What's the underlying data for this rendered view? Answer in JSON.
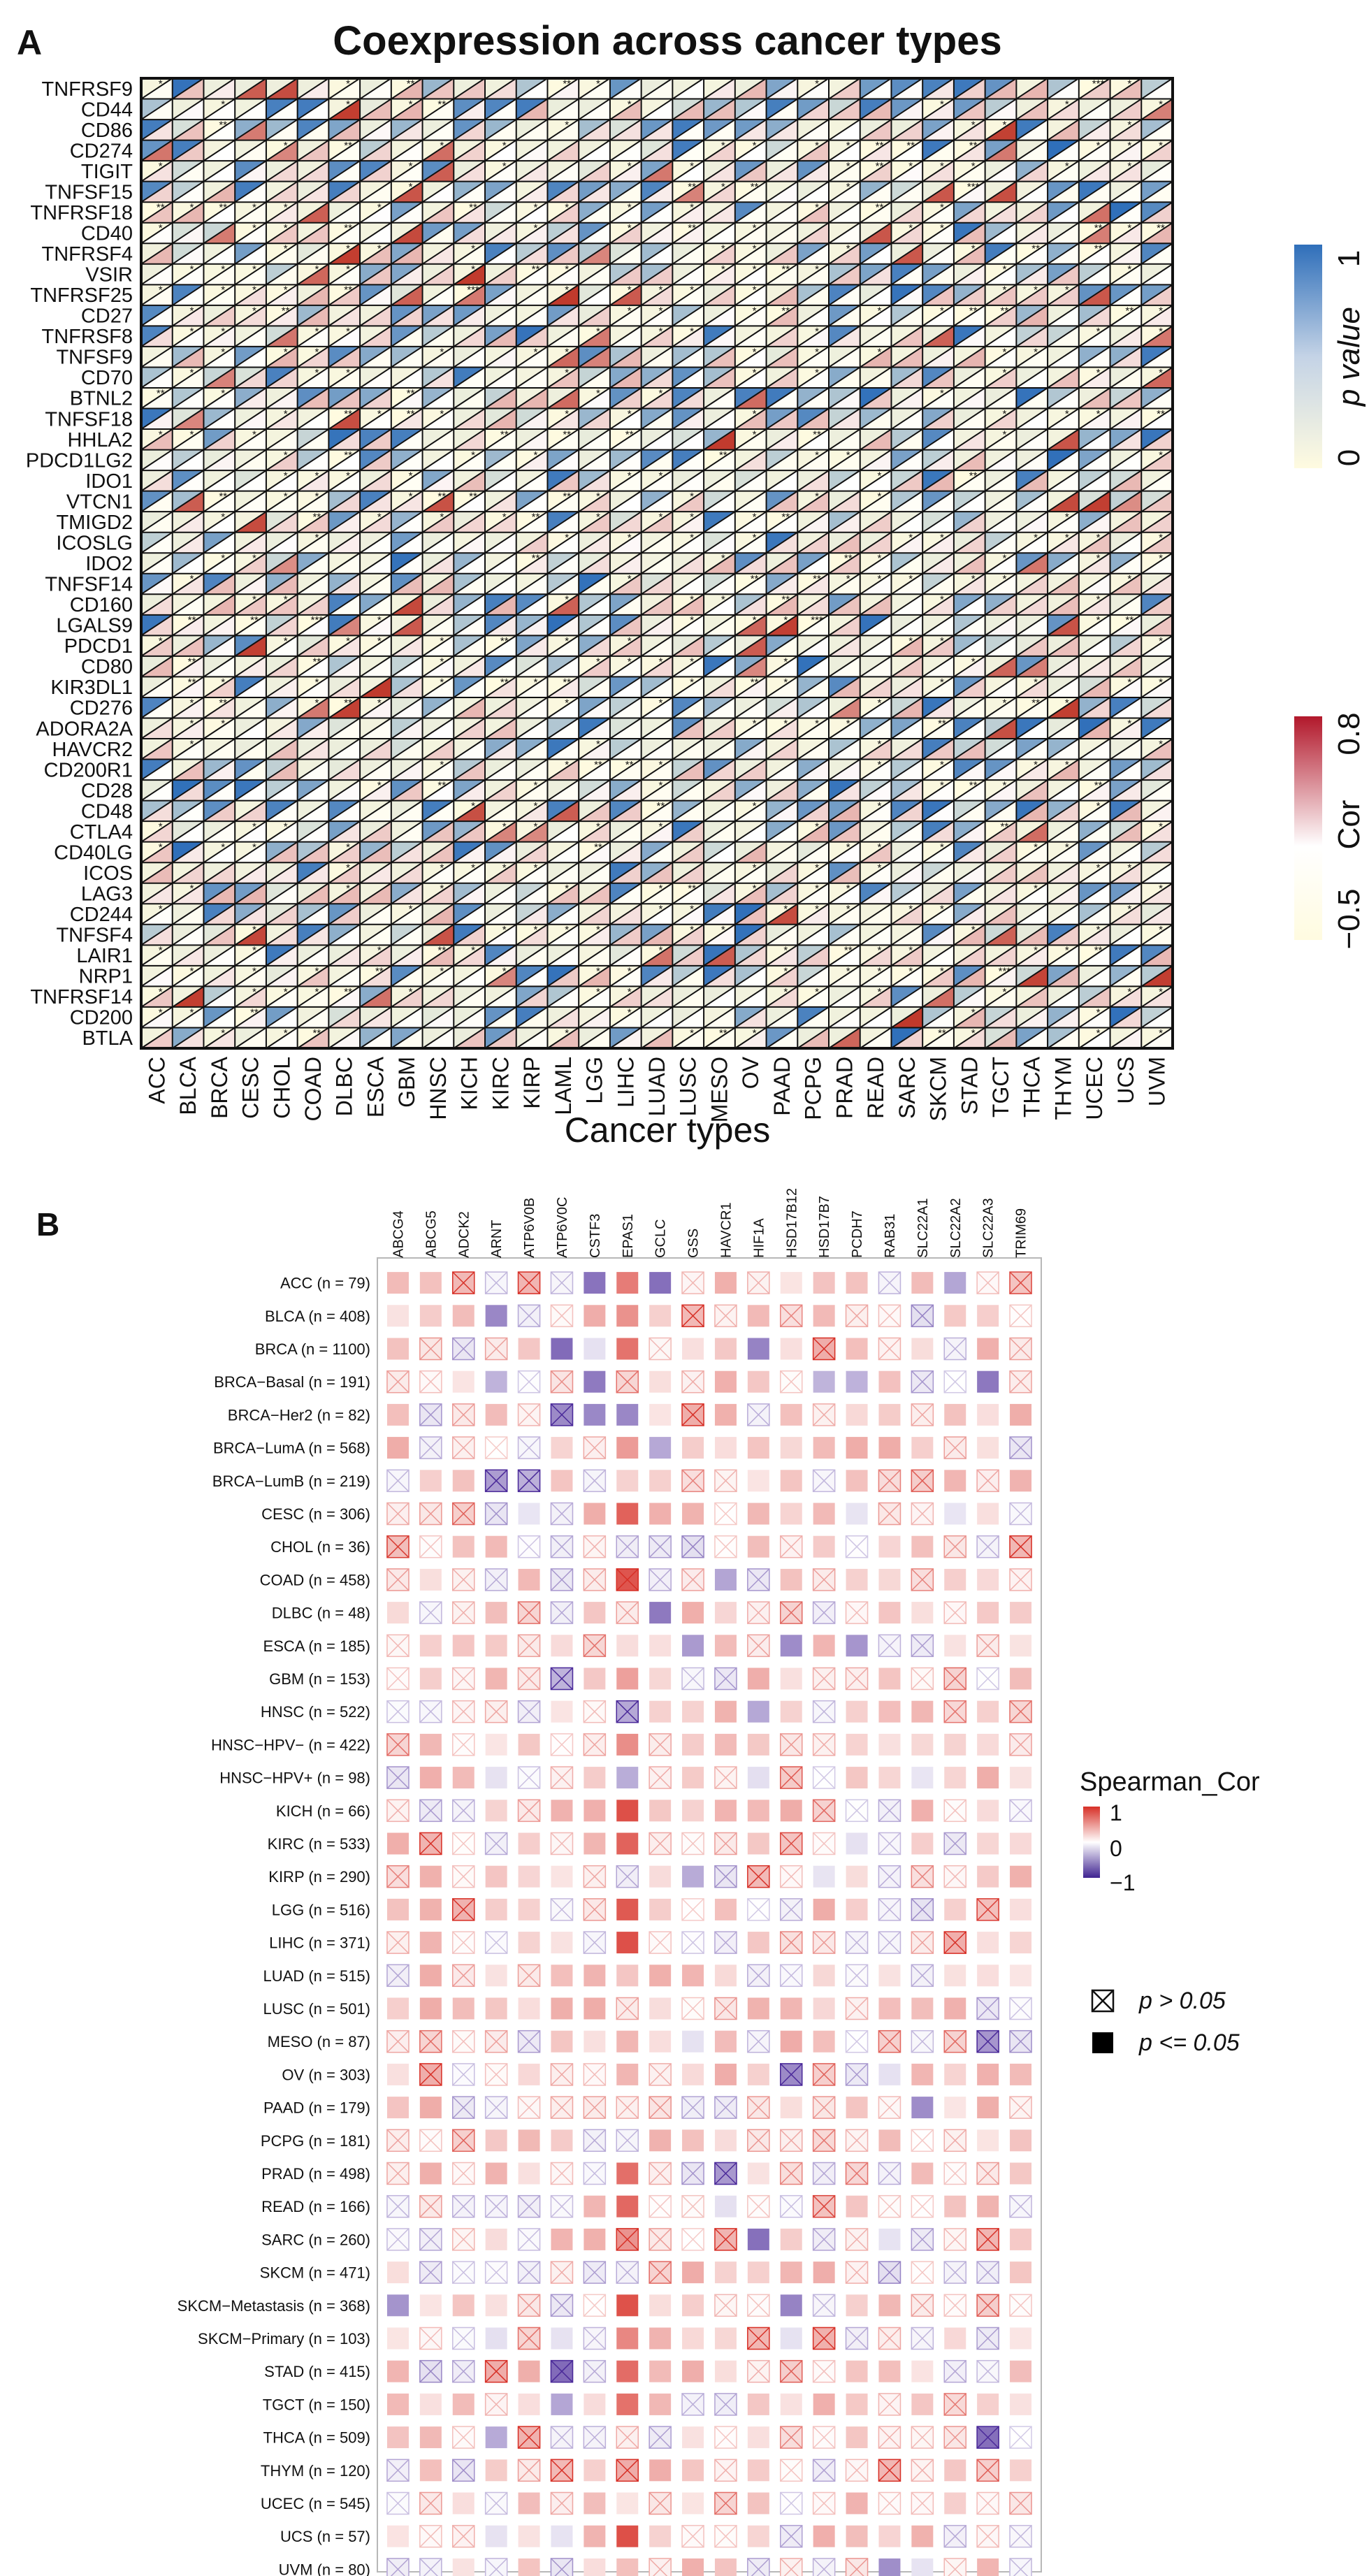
{
  "panels": {
    "a_label": "A",
    "b_label": "B"
  },
  "colors": {
    "heat_high": "#c0392b",
    "heat_mid": "#ffffff",
    "heat_low": "#fffbe0",
    "pval_high": "#2f6fba",
    "pval_low": "#fffbe0",
    "sp_high": "#d73027",
    "sp_mid": "#ffffff",
    "sp_low": "#4b2a9a",
    "grid": "#111111"
  },
  "chart_data": [
    {
      "type": "heatmap",
      "title": "Coexpression across cancer types",
      "xlabel": "Cancer types",
      "ylabel": "",
      "x": [
        "ACC",
        "BLCA",
        "BRCA",
        "CESC",
        "CHOL",
        "COAD",
        "DLBC",
        "ESCA",
        "GBM",
        "HNSC",
        "KICH",
        "KIRC",
        "KIRP",
        "LAML",
        "LGG",
        "LIHC",
        "LUAD",
        "LUSC",
        "MESO",
        "OV",
        "PAAD",
        "PCPG",
        "PRAD",
        "READ",
        "SARC",
        "SKCM",
        "STAD",
        "TGCT",
        "THCA",
        "THYM",
        "UCEC",
        "UCS",
        "UVM"
      ],
      "y": [
        "TNFRSF9",
        "CD44",
        "CD86",
        "CD274",
        "TIGIT",
        "TNFSF15",
        "TNFRSF18",
        "CD40",
        "TNFRSF4",
        "VSIR",
        "TNFRSF25",
        "CD27",
        "TNFRSF8",
        "TNFSF9",
        "CD70",
        "BTNL2",
        "TNFSF18",
        "HHLA2",
        "PDCD1LG2",
        "IDO1",
        "VTCN1",
        "TMIGD2",
        "ICOSLG",
        "IDO2",
        "TNFSF14",
        "CD160",
        "LGALS9",
        "PDCD1",
        "CD80",
        "KIR3DL1",
        "CD276",
        "ADORA2A",
        "HAVCR2",
        "CD200R1",
        "CD28",
        "CD48",
        "CTLA4",
        "CD40LG",
        "ICOS",
        "LAG3",
        "CD244",
        "TNFSF4",
        "LAIR1",
        "NRP1",
        "TNFRSF14",
        "CD200",
        "BTLA"
      ],
      "cell_style": "split-triangle: upper-left = p value, lower-right = Cor, significance stars",
      "legends": [
        {
          "title": "p value",
          "min_label": "0",
          "max_label": "1",
          "range": [
            0,
            1
          ]
        },
        {
          "title": "Cor",
          "min_label": "−0.5",
          "max_label": "0.8",
          "range": [
            -0.5,
            0.8
          ]
        }
      ],
      "sig_marks": [
        "*",
        "**",
        "***"
      ],
      "values_note": "estimated pattern; per-cell values generated deterministically"
    },
    {
      "type": "heatmap",
      "title": "",
      "x": [
        "ABCG4",
        "ABCG5",
        "ADCK2",
        "ARNT",
        "ATP6V0B",
        "ATP6V0C",
        "CSTF3",
        "EPAS1",
        "GCLC",
        "GSS",
        "HAVCR1",
        "HIF1A",
        "HSD17B12",
        "HSD17B7",
        "PCDH7",
        "RAB31",
        "SLC22A1",
        "SLC22A2",
        "SLC22A3",
        "TRIM69"
      ],
      "y": [
        "ACC (n = 79)",
        "BLCA (n = 408)",
        "BRCA (n = 1100)",
        "BRCA−Basal (n = 191)",
        "BRCA−Her2 (n = 82)",
        "BRCA−LumA (n = 568)",
        "BRCA−LumB (n = 219)",
        "CESC (n = 306)",
        "CHOL (n = 36)",
        "COAD (n = 458)",
        "DLBC (n = 48)",
        "ESCA (n = 185)",
        "GBM (n = 153)",
        "HNSC (n = 522)",
        "HNSC−HPV− (n = 422)",
        "HNSC−HPV+ (n = 98)",
        "KICH (n = 66)",
        "KIRC (n = 533)",
        "KIRP (n = 290)",
        "LGG (n = 516)",
        "LIHC (n = 371)",
        "LUAD (n = 515)",
        "LUSC (n = 501)",
        "MESO (n = 87)",
        "OV (n = 303)",
        "PAAD (n = 179)",
        "PCPG (n = 181)",
        "PRAD (n = 498)",
        "READ (n = 166)",
        "SARC (n = 260)",
        "SKCM (n = 471)",
        "SKCM−Metastasis (n = 368)",
        "SKCM−Primary (n = 103)",
        "STAD (n = 415)",
        "TGCT (n = 150)",
        "THCA (n = 509)",
        "THYM (n = 120)",
        "UCEC (n = 545)",
        "UCS (n = 57)",
        "UVM (n = 80)"
      ],
      "legend": {
        "title": "Spearman_Cor",
        "ticks": [
          "1",
          "0",
          "−1"
        ],
        "range": [
          -1,
          1
        ]
      },
      "shape_legend": [
        {
          "label": "p > 0.05",
          "symbol": "crossed box"
        },
        {
          "label": "p <= 0.05",
          "symbol": "filled box"
        }
      ],
      "values_note": "estimated pattern; per-cell values generated deterministically"
    }
  ]
}
